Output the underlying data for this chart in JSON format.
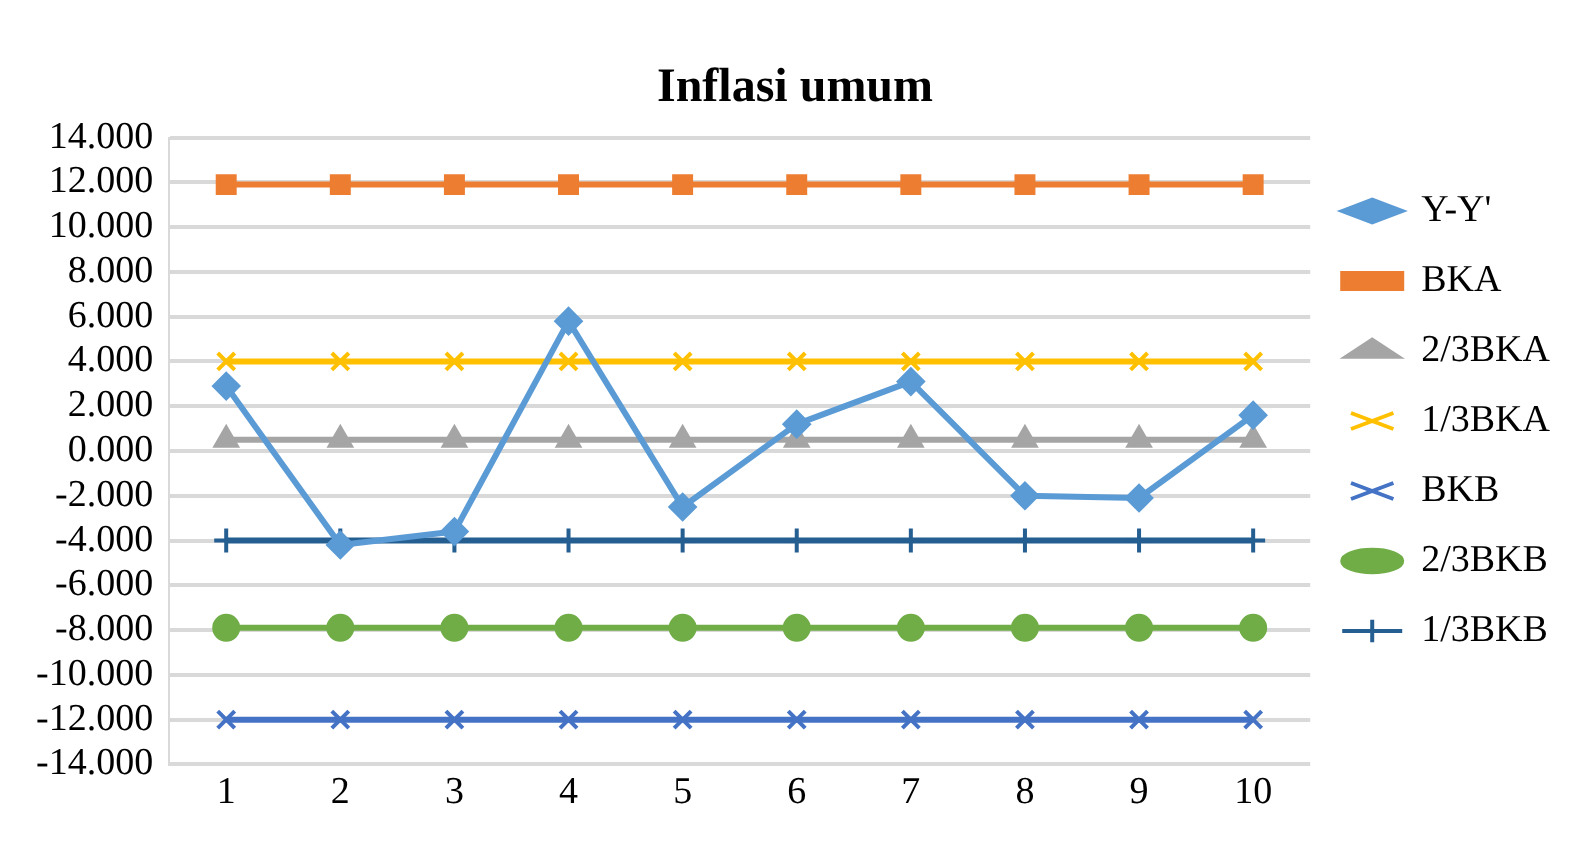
{
  "chart_data": {
    "type": "line",
    "title": "Inflasi umum",
    "categories": [
      "1",
      "2",
      "3",
      "4",
      "5",
      "6",
      "7",
      "8",
      "9",
      "10"
    ],
    "series": [
      {
        "name": "Y-Y'",
        "color": "#5b9bd5",
        "marker": "diamond",
        "values": [
          2.9,
          -4.2,
          -3.6,
          5.8,
          -2.5,
          1.2,
          3.1,
          -2.0,
          -2.1,
          1.6
        ]
      },
      {
        "name": "BKA",
        "color": "#ed7d31",
        "marker": "square",
        "values": [
          11.9,
          11.9,
          11.9,
          11.9,
          11.9,
          11.9,
          11.9,
          11.9,
          11.9,
          11.9
        ]
      },
      {
        "name": "2/3BKA",
        "color": "#a5a5a5",
        "marker": "triangle",
        "values": [
          0.5,
          0.5,
          0.5,
          0.5,
          0.5,
          0.5,
          0.5,
          0.5,
          0.5,
          0.5
        ]
      },
      {
        "name": "1/3BKA",
        "color": "#ffc000",
        "marker": "cross",
        "values": [
          4.0,
          4.0,
          4.0,
          4.0,
          4.0,
          4.0,
          4.0,
          4.0,
          4.0,
          4.0
        ]
      },
      {
        "name": "BKB",
        "color": "#4472c4",
        "marker": "cross",
        "values": [
          -12.0,
          -12.0,
          -12.0,
          -12.0,
          -12.0,
          -12.0,
          -12.0,
          -12.0,
          -12.0,
          -12.0
        ]
      },
      {
        "name": "2/3BKB",
        "color": "#70ad47",
        "marker": "circle",
        "values": [
          -7.9,
          -7.9,
          -7.9,
          -7.9,
          -7.9,
          -7.9,
          -7.9,
          -7.9,
          -7.9,
          -7.9
        ]
      },
      {
        "name": "1/3BKB",
        "color": "#255e91",
        "marker": "plus",
        "values": [
          -4.0,
          -4.0,
          -4.0,
          -4.0,
          -4.0,
          -4.0,
          -4.0,
          -4.0,
          -4.0,
          -4.0
        ]
      }
    ],
    "ylim": [
      -14,
      14
    ],
    "yticks": [
      {
        "value": -14,
        "label": "-14.000"
      },
      {
        "value": -12,
        "label": "-12.000"
      },
      {
        "value": -10,
        "label": "-10.000"
      },
      {
        "value": -8,
        "label": "-8.000"
      },
      {
        "value": -6,
        "label": "-6.000"
      },
      {
        "value": -4,
        "label": "-4.000"
      },
      {
        "value": -2,
        "label": "-2.000"
      },
      {
        "value": 0,
        "label": "0.000"
      },
      {
        "value": 2,
        "label": "2.000"
      },
      {
        "value": 4,
        "label": "4.000"
      },
      {
        "value": 6,
        "label": "6.000"
      },
      {
        "value": 8,
        "label": "8.000"
      },
      {
        "value": 10,
        "label": "10.000"
      },
      {
        "value": 12,
        "label": "12.000"
      },
      {
        "value": 14,
        "label": "14.000"
      }
    ],
    "grid": "y",
    "legend": "right"
  }
}
